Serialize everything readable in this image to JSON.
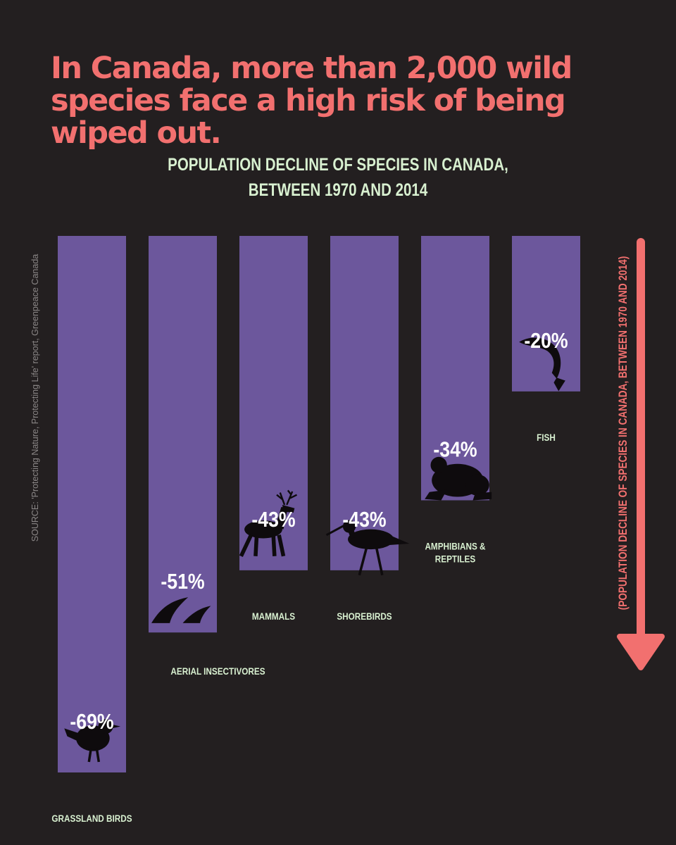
{
  "headline": "In Canada, more than 2,000 wild species face a high risk of being wiped out.",
  "source": "SOURCE: 'Protecting Nature, Protecting Life' report, Greenpeace Canada",
  "axis_label": "(POPULATION DECLINE OF SPECIES IN CANADA, BETWEEN 1970 AND 2014)",
  "colors": {
    "background": "#231f20",
    "bar": "#6c579c",
    "accent": "#f2706f",
    "label": "#d8f0d0",
    "silhouette": "#0e0b0d"
  },
  "chart_data": {
    "type": "bar",
    "title": "POPULATION DECLINE OF SPECIES IN CANADA, BETWEEN 1970 AND 2014",
    "title_lines": [
      "POPULATION DECLINE OF SPECIES IN CANADA,",
      "BETWEEN 1970 AND 2014"
    ],
    "orientation": "downward",
    "categories": [
      "GRASSLAND BIRDS",
      "AERIAL INSECTIVORES",
      "MAMMALS",
      "SHOREBIRDS",
      "AMPHIBIANS & REPTILES",
      "FISH"
    ],
    "values": [
      -69,
      -51,
      -43,
      -43,
      -34,
      -20
    ],
    "data_labels": [
      "-69%",
      "-51%",
      "-43%",
      "-43%",
      "-34%",
      "-20%"
    ],
    "icons": [
      "songbird-icon",
      "swallow-icon",
      "deer-icon",
      "shorebird-icon",
      "frog-icon",
      "fish-icon"
    ],
    "ylim": [
      -69,
      0
    ],
    "unit": "%"
  }
}
